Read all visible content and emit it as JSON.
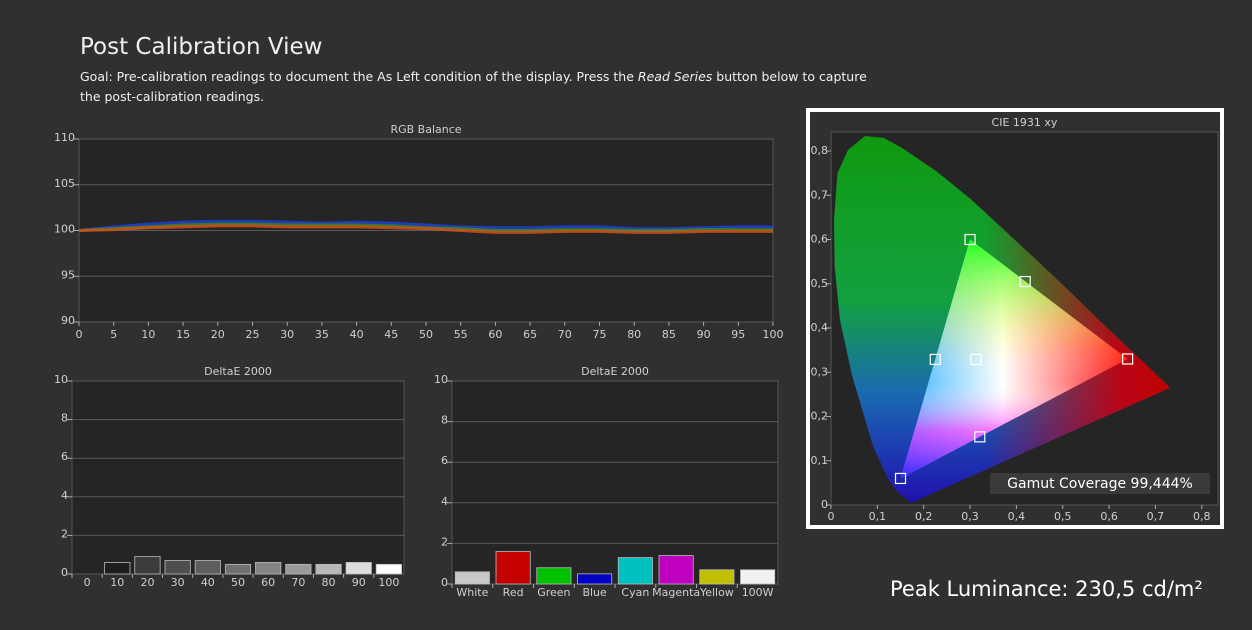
{
  "header": {
    "title": "Post Calibration View",
    "goal_prefix": "Goal: Pre-calibration readings to document the As Left condition of the display. Press the ",
    "goal_emphasis": "Read Series",
    "goal_suffix": " button below to capture the post-calibration readings."
  },
  "footer": {
    "peak_luminance": "Peak Luminance: 230,5 cd/m²"
  },
  "chart_data": [
    {
      "type": "line",
      "title": "RGB Balance",
      "x": [
        0,
        5,
        10,
        15,
        20,
        25,
        30,
        35,
        40,
        45,
        50,
        55,
        60,
        65,
        70,
        75,
        80,
        85,
        90,
        95,
        100
      ],
      "series": [
        {
          "color": "#1f3fd0",
          "values": [
            100.0,
            100.4,
            100.7,
            100.9,
            101.0,
            101.0,
            100.9,
            100.8,
            100.9,
            100.8,
            100.6,
            100.4,
            100.3,
            100.3,
            100.4,
            100.4,
            100.2,
            100.2,
            100.3,
            100.4,
            100.4
          ]
        },
        {
          "color": "#3f8a2a",
          "values": [
            100.0,
            100.2,
            100.4,
            100.6,
            100.7,
            100.7,
            100.6,
            100.6,
            100.6,
            100.5,
            100.3,
            100.2,
            100.0,
            100.0,
            100.1,
            100.1,
            100.0,
            100.0,
            100.1,
            100.1,
            100.1
          ]
        },
        {
          "color": "#d0501a",
          "values": [
            100.0,
            100.1,
            100.3,
            100.4,
            100.5,
            100.5,
            100.4,
            100.4,
            100.4,
            100.3,
            100.2,
            100.0,
            99.8,
            99.8,
            99.9,
            99.9,
            99.8,
            99.8,
            99.9,
            99.9,
            99.9
          ]
        }
      ],
      "xlim": [
        0,
        100
      ],
      "xticks": [
        0,
        5,
        10,
        15,
        20,
        25,
        30,
        35,
        40,
        45,
        50,
        55,
        60,
        65,
        70,
        75,
        80,
        85,
        90,
        95,
        100
      ],
      "ylim": [
        90,
        110
      ],
      "yticks": [
        90,
        95,
        100,
        105,
        110
      ],
      "grid": true
    },
    {
      "type": "bar",
      "title": "DeltaE 2000",
      "categories": [
        "0",
        "10",
        "20",
        "30",
        "40",
        "50",
        "60",
        "70",
        "80",
        "90",
        "100"
      ],
      "values": [
        null,
        0.6,
        0.9,
        0.7,
        0.7,
        0.5,
        0.6,
        0.5,
        0.5,
        0.6,
        0.5
      ],
      "colors": [
        null,
        "#1e1e1e",
        "#3c3c3c",
        "#4e4e4e",
        "#5e5e5e",
        "#707070",
        "#848484",
        "#9a9a9a",
        "#b8b8b8",
        "#dcdcdc",
        "#ffffff"
      ],
      "ylim": [
        0,
        10
      ],
      "yticks": [
        0,
        2,
        4,
        6,
        8,
        10
      ],
      "grid": true
    },
    {
      "type": "bar",
      "title": "DeltaE 2000",
      "categories": [
        "White",
        "Red",
        "Green",
        "Blue",
        "Cyan",
        "Magenta",
        "Yellow",
        "100W"
      ],
      "values": [
        0.6,
        1.6,
        0.8,
        0.5,
        1.3,
        1.4,
        0.7,
        0.7
      ],
      "colors": [
        "#c8c8c8",
        "#c40000",
        "#00c000",
        "#0000c0",
        "#00c0c0",
        "#c000c0",
        "#c0c000",
        "#f2f2f2"
      ],
      "ylim": [
        0,
        10
      ],
      "yticks": [
        0,
        2,
        4,
        6,
        8,
        10
      ],
      "grid": true
    },
    {
      "type": "scatter",
      "title": "CIE 1931 xy",
      "x": [
        0.64,
        0.3,
        0.15,
        0.3127,
        0.225,
        0.321,
        0.419
      ],
      "values": [
        0.33,
        0.6,
        0.06,
        0.329,
        0.329,
        0.154,
        0.505
      ],
      "xlim": [
        0,
        0.835
      ],
      "ylim": [
        0,
        0.843
      ],
      "xticks": [
        0,
        {
          "value": 0.1,
          "label": "0,1"
        },
        {
          "value": 0.2,
          "label": "0,2"
        },
        {
          "value": 0.3,
          "label": "0,3"
        },
        {
          "value": 0.4,
          "label": "0,4"
        },
        {
          "value": 0.5,
          "label": "0,5"
        },
        {
          "value": 0.6,
          "label": "0,6"
        },
        {
          "value": 0.7,
          "label": "0,7"
        },
        {
          "value": 0.8,
          "label": "0,8"
        }
      ],
      "yticks": [
        0,
        {
          "value": 0.1,
          "label": "0,1"
        },
        {
          "value": 0.2,
          "label": "0,2"
        },
        {
          "value": 0.3,
          "label": "0,3"
        },
        {
          "value": 0.4,
          "label": "0,4"
        },
        {
          "value": 0.5,
          "label": "0,5"
        },
        {
          "value": 0.6,
          "label": "0,6"
        },
        {
          "value": 0.7,
          "label": "0,7"
        },
        {
          "value": 0.8,
          "label": "0,8"
        }
      ],
      "annotation": "Gamut Coverage 99,444%"
    }
  ]
}
